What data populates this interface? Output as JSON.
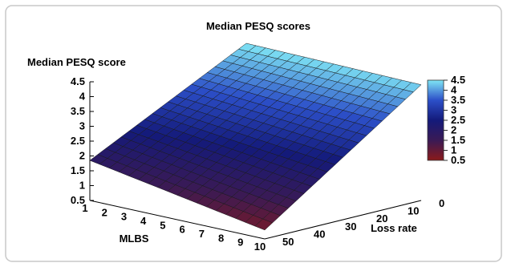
{
  "chart_data": {
    "type": "surface",
    "title": "Median PESQ scores",
    "zlabel": "Median PESQ score",
    "xlabel": "MLBS",
    "ylabel": "Loss rate",
    "x_ticks": [
      "1",
      "2",
      "3",
      "4",
      "5",
      "6",
      "7",
      "8",
      "9",
      "10"
    ],
    "y_ticks": [
      "0",
      "10",
      "20",
      "30",
      "40",
      "50"
    ],
    "z_ticks": [
      "0.5",
      "1",
      "1.5",
      "2",
      "2.5",
      "3",
      "3.5",
      "4",
      "4.5"
    ],
    "colorbar_ticks": [
      "0.5",
      "1",
      "1.5",
      "2",
      "2.5",
      "3",
      "3.5",
      "4",
      "4.5"
    ],
    "xlim": [
      1,
      10
    ],
    "ylim": [
      0,
      50
    ],
    "zlim": [
      0.5,
      4.5
    ],
    "grid": false,
    "colormap": {
      "stops": [
        {
          "value": 0.5,
          "color": "#8b1a1a"
        },
        {
          "value": 1.5,
          "color": "#3a1a55"
        },
        {
          "value": 2.5,
          "color": "#141a7a"
        },
        {
          "value": 3.5,
          "color": "#2c4fc8"
        },
        {
          "value": 4.5,
          "color": "#7fe6f5"
        }
      ]
    },
    "surface_corners": [
      {
        "mlbs": 1,
        "loss_rate": 0,
        "score": 4.5
      },
      {
        "mlbs": 10,
        "loss_rate": 0,
        "score": 4.4
      },
      {
        "mlbs": 1,
        "loss_rate": 50,
        "score": 1.85
      },
      {
        "mlbs": 10,
        "loss_rate": 50,
        "score": 0.8
      }
    ]
  }
}
